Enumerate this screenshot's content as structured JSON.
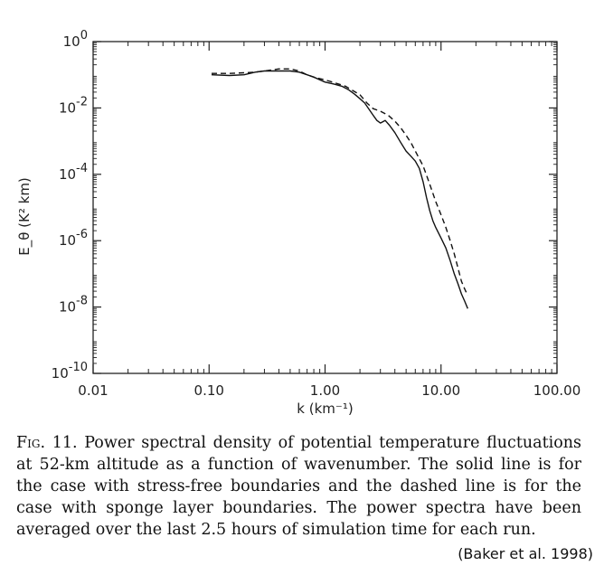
{
  "chart_data": {
    "type": "line",
    "xlabel": "k (km⁻¹)",
    "ylabel": "E_θ (K² km)",
    "x_scale": "log",
    "y_scale": "log",
    "xlim": [
      0.01,
      100
    ],
    "ylim": [
      1e-10,
      1
    ],
    "x_ticks": [
      {
        "value": 0.01,
        "label": "0.01"
      },
      {
        "value": 0.1,
        "label": "0.10"
      },
      {
        "value": 1,
        "label": "1.00"
      },
      {
        "value": 10,
        "label": "10.00"
      },
      {
        "value": 100,
        "label": "100.00"
      }
    ],
    "y_ticks": [
      {
        "value": 1,
        "base": "10",
        "exp": "0"
      },
      {
        "value": 0.01,
        "base": "10",
        "exp": "-2"
      },
      {
        "value": 0.0001,
        "base": "10",
        "exp": "-4"
      },
      {
        "value": 1e-06,
        "base": "10",
        "exp": "-6"
      },
      {
        "value": 1e-08,
        "base": "10",
        "exp": "-8"
      },
      {
        "value": 1e-10,
        "base": "10",
        "exp": "-10"
      }
    ],
    "grid": false,
    "legend": "none",
    "series": [
      {
        "style": "solid",
        "x": [
          0.105,
          0.15,
          0.2,
          0.25,
          0.3,
          0.4,
          0.5,
          0.6,
          0.7,
          0.8,
          1.0,
          1.2,
          1.4,
          1.6,
          1.8,
          2.0,
          2.2,
          2.4,
          2.6,
          2.8,
          3.0,
          3.3,
          3.6,
          4.0,
          4.5,
          5.0,
          5.5,
          6.0,
          6.5,
          7.0,
          7.5,
          8.0,
          8.5,
          9.0,
          10.0,
          11.0,
          12.0,
          13.0,
          14.0,
          15.0,
          16.0,
          17.0
        ],
        "y": [
          0.1,
          0.095,
          0.1,
          0.12,
          0.13,
          0.13,
          0.13,
          0.12,
          0.1,
          0.085,
          0.06,
          0.052,
          0.045,
          0.035,
          0.026,
          0.019,
          0.014,
          0.009,
          0.006,
          0.0042,
          0.0035,
          0.0042,
          0.003,
          0.0018,
          0.0009,
          0.0005,
          0.00035,
          0.00025,
          0.00015,
          6e-05,
          2e-05,
          8e-06,
          4e-06,
          2.5e-06,
          1.2e-06,
          6e-07,
          2.5e-07,
          1e-07,
          5e-08,
          2.5e-08,
          1.5e-08,
          9e-09
        ]
      },
      {
        "style": "dashed",
        "x": [
          0.105,
          0.15,
          0.2,
          0.25,
          0.3,
          0.35,
          0.4,
          0.5,
          0.6,
          0.7,
          0.8,
          1.0,
          1.2,
          1.5,
          2.0,
          2.3,
          2.6,
          3.0,
          3.5,
          4.0,
          4.5,
          5.0,
          5.5,
          6.0,
          7.0,
          8.0,
          9.0,
          10.0,
          11.0,
          12.0,
          13.0,
          14.0,
          15.0,
          16.0,
          17.0
        ],
        "y": [
          0.11,
          0.11,
          0.115,
          0.12,
          0.13,
          0.14,
          0.15,
          0.15,
          0.13,
          0.1,
          0.085,
          0.07,
          0.058,
          0.045,
          0.025,
          0.014,
          0.0095,
          0.008,
          0.006,
          0.004,
          0.0025,
          0.0015,
          0.0009,
          0.0005,
          0.00018,
          5e-05,
          1.5e-05,
          6e-06,
          2.5e-06,
          1e-06,
          4e-07,
          1.5e-07,
          6e-08,
          3.5e-08,
          2.2e-08
        ]
      }
    ]
  },
  "caption": {
    "fig_label": "Fig. 11.",
    "text": "Power spectral density of potential temperature fluctuations at 52-km altitude as a function of wavenumber. The solid line is for the case with stress-free boundaries and the dashed line is for the case with sponge layer boundaries. The power spectra have been averaged over the last 2.5 hours of simulation time for each run."
  },
  "citation": "(Baker et al. 1998)"
}
